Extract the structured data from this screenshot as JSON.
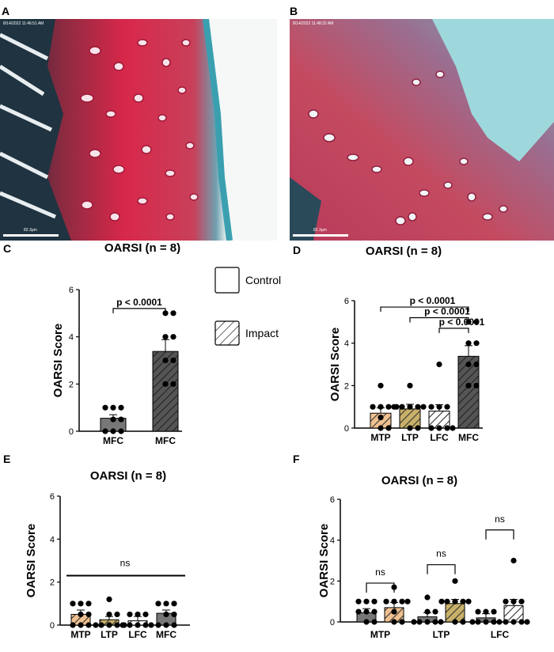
{
  "panels": {
    "A": "A",
    "B": "B",
    "C": "C",
    "D": "D",
    "E": "E",
    "F": "F"
  },
  "micrographs": {
    "A": {
      "stamp": "8/14/2022 11:46:51 AM",
      "scale_label": "82.3µm"
    },
    "B": {
      "stamp": "8/14/2022 11:48:32 AM",
      "scale_label": "82.3µm"
    }
  },
  "legend": {
    "control": "Control",
    "impact": "Impact"
  },
  "colors": {
    "control_fill": "#ffffff",
    "impact_fill": "#555555",
    "mtp_fill": "#f0c090",
    "ltp_fill": "#c8b068",
    "lfc_fill": "#ffffff",
    "mfc_fill": "#555555",
    "grey_fill": "#777777"
  },
  "chart_data": [
    {
      "id": "C",
      "type": "bar",
      "title": "OARSI (n = 8)",
      "ylabel": "OARSI Score",
      "ylim": [
        0,
        6
      ],
      "yticks": [
        0,
        2,
        4,
        6
      ],
      "categories": [
        "MFC",
        "MFC"
      ],
      "values": [
        0.55,
        3.38
      ],
      "errors": [
        0.15,
        0.5
      ],
      "fills": [
        "grey",
        "impact"
      ],
      "points": [
        [
          0,
          0,
          0,
          0.5,
          0.5,
          1,
          1,
          1
        ],
        [
          2,
          2,
          3,
          3,
          4,
          4,
          5,
          5
        ]
      ],
      "comparisons": [
        {
          "from": 0,
          "to": 1,
          "label": "p < 0.0001",
          "level": 5.2
        }
      ]
    },
    {
      "id": "D",
      "type": "bar",
      "title": "OARSI (n = 8)",
      "ylabel": "OARSI Score",
      "ylim": [
        0,
        6
      ],
      "yticks": [
        0,
        2,
        4,
        6
      ],
      "categories": [
        "MTP",
        "LTP",
        "LFC",
        "MFC"
      ],
      "values": [
        0.7,
        0.9,
        0.8,
        3.38
      ],
      "errors": [
        0.25,
        0.22,
        0.3,
        0.5
      ],
      "fills": [
        "mtp",
        "ltp",
        "lfc",
        "impact"
      ],
      "points": [
        [
          0,
          0,
          0.5,
          1,
          1,
          1,
          1,
          2
        ],
        [
          0,
          0,
          1,
          1,
          1,
          1,
          1,
          2
        ],
        [
          0,
          0,
          0,
          0,
          1,
          1,
          1,
          3
        ],
        [
          2,
          2,
          3,
          3,
          4,
          4,
          5,
          5
        ]
      ],
      "comparisons": [
        {
          "from": 0,
          "to": 3,
          "label": "p < 0.0001",
          "level": 5.7
        },
        {
          "from": 1,
          "to": 3,
          "label": "p < 0.0001",
          "level": 5.2
        },
        {
          "from": 2,
          "to": 3,
          "label": "p < 0.0001",
          "level": 4.7
        }
      ]
    },
    {
      "id": "E",
      "type": "bar",
      "title": "OARSI (n = 8)",
      "ylabel": "OARSI Score",
      "ylim": [
        0,
        6
      ],
      "yticks": [
        0,
        2,
        4,
        6
      ],
      "categories": [
        "MTP",
        "LTP",
        "LFC",
        "MFC"
      ],
      "values": [
        0.5,
        0.25,
        0.2,
        0.55
      ],
      "errors": [
        0.2,
        0.15,
        0.2,
        0.15
      ],
      "fills": [
        "mtp",
        "ltp",
        "lfc",
        "grey"
      ],
      "points": [
        [
          0,
          0,
          0,
          0.5,
          0.5,
          1,
          1,
          1
        ],
        [
          0,
          0,
          0,
          0,
          0,
          0.5,
          0.5,
          1.2
        ],
        [
          0,
          0,
          0,
          0,
          0,
          0.5,
          0.5,
          0.5
        ],
        [
          0,
          0,
          0,
          0.5,
          0.5,
          1,
          1,
          1
        ]
      ],
      "ns_line": {
        "label": "ns",
        "level": 2.3
      }
    },
    {
      "id": "F",
      "type": "bar",
      "title": "OARSI (n = 8)",
      "ylabel": "OARSI Score",
      "ylim": [
        0,
        6
      ],
      "yticks": [
        0,
        2,
        4,
        6
      ],
      "groups": [
        "MTP",
        "LTP",
        "LFC"
      ],
      "series": [
        {
          "values": [
            0.45,
            0.25,
            0.2
          ],
          "errors": [
            0.2,
            0.2,
            0.2
          ],
          "fill": "grey"
        },
        {
          "values": [
            0.7,
            0.9,
            0.8
          ],
          "errors": [
            0.25,
            0.2,
            0.3
          ],
          "fills": [
            "mtp",
            "ltp",
            "lfc"
          ]
        }
      ],
      "points": [
        [
          [
            0,
            0,
            0.5,
            0.5,
            0.5,
            1,
            1,
            1
          ],
          [
            0,
            0,
            0.5,
            1,
            1,
            1,
            1,
            1.7
          ]
        ],
        [
          [
            0,
            0,
            0,
            0,
            0,
            0.5,
            0.5,
            1.2
          ],
          [
            0,
            0,
            1,
            1,
            1,
            1,
            1,
            2
          ]
        ],
        [
          [
            0,
            0,
            0,
            0,
            0,
            0.5,
            0.5,
            0.5
          ],
          [
            0,
            0,
            0,
            0,
            1,
            1,
            1,
            3
          ]
        ]
      ],
      "comparisons": [
        {
          "group": 0,
          "label": "ns",
          "level": 1.9
        },
        {
          "group": 1,
          "label": "ns",
          "level": 2.8
        },
        {
          "group": 2,
          "label": "ns",
          "level": 4.5
        }
      ]
    }
  ]
}
